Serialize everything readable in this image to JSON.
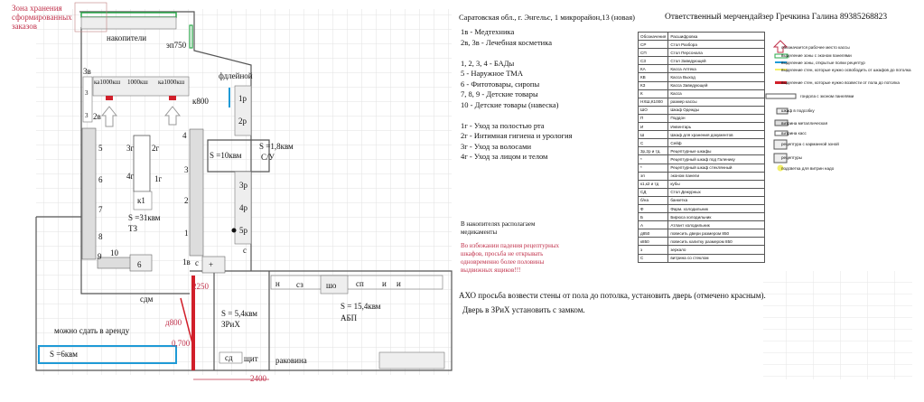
{
  "header": {
    "address": "Саратовская обл., г. Энгельс, 1 микрорайон,13 (новая)",
    "responsible": "Ответственный мерчендайзер Гречкина Галина 89385268823"
  },
  "zones": [
    "1в - Медтехника",
    "2в, 3в - Лечебная косметика",
    "",
    "1, 2, 3, 4 - БАДы",
    "5 - Наружное ТМА",
    "6 - Фитотовары, сиропы",
    "7, 8, 9 - Детские товары",
    "10 - Детские товары (навеска)",
    "",
    "1г - Уход за полостью рта",
    "2г - Интимная гигиена и урология",
    "3г - Уход за волосами",
    "4г - Уход за лицом и телом"
  ],
  "notes": {
    "storage": "В накопителях располагаем медикаменты",
    "warning": "Во избежании падения рецептурных шкафов, просьба не открывать одновременно более половины выдвижных ящиков!!!",
    "walls": "АХО просьба возвести стены от пола до потолка, установить дверь (отмечено красным).",
    "door": "Дверь в ЗРиХ установить с замком."
  },
  "plan": {
    "storage_zone": "Зона хранения сформированных заказов",
    "nakopiteli": "накопители",
    "ep750": "эп750",
    "v3": "3в",
    "ka1": "ка1000кш",
    "k1000": "1000кш",
    "ka2": "ка1000кш",
    "door_label": "фдлейной",
    "k800": "к800",
    "r1": "1р",
    "r2": "2р",
    "v2": "2в",
    "c3a": "3",
    "c3b": "3",
    "n5": "5",
    "n6": "6",
    "n7": "7",
    "n8": "8",
    "n9": "9",
    "n10": "10",
    "g3": "3г",
    "g2": "2г",
    "g4": "4г",
    "g1": "1г",
    "k1": "к1",
    "area_tz": "S =31квм",
    "tz": "ТЗ",
    "n4b": "4",
    "n3b": "3",
    "n2b": "2",
    "n1b": "1",
    "area_10": "S =10квм",
    "area_su": "S =1,8квм",
    "su": "С/У",
    "r3": "3р",
    "r4": "4р",
    "r5": "5р",
    "c_small": "с",
    "fridge6": "6",
    "v1": "1в",
    "c2": "с",
    "plus": "+",
    "sdm": "сдм",
    "d2250": "2250",
    "n_a": "н",
    "sz": "сз",
    "sho": "шо",
    "sp": "сп",
    "i1": "и",
    "i2": "и",
    "area_zrih": "S = 5,4квм",
    "zrih": "ЗРиХ",
    "area_abp": "S = 15,4квм",
    "abp": "АБП",
    "d800": "д800",
    "d0700": "0,700",
    "rent": "можно сдать в аренду",
    "area_6": "S =6квм",
    "sd": "сд",
    "shit": "щит",
    "sink": "раковина",
    "d2400": "2400"
  },
  "legend_table": [
    [
      "Обозначения",
      "Расшифровка"
    ],
    [
      "СР",
      "Стол Разбора"
    ],
    [
      "СП",
      "Стол Персонала"
    ],
    [
      "СЗ",
      "Стол Заведующей"
    ],
    [
      "КА",
      "Касса Аптека"
    ],
    [
      "КВ",
      "Касса Выход"
    ],
    [
      "КЗ",
      "Касса Заведующей"
    ],
    [
      "К",
      "Касса"
    ],
    [
      "НХШ,К1000",
      "размер кассы"
    ],
    [
      "ШО",
      "Шкаф Одежды"
    ],
    [
      "П",
      "Поддон"
    ],
    [
      "И",
      "Инвентарь"
    ],
    [
      "Ш",
      "Шкаф для хранения документов"
    ],
    [
      "С",
      "Сейф"
    ],
    [
      "3р,2р и тд.",
      "Рецептурные шкафы"
    ],
    [
      "*",
      "Рецептурный шкаф под Галенику"
    ],
    [
      "*",
      "Рецептурный шкаф стеклянный"
    ],
    [
      "эп",
      "эконом панели"
    ],
    [
      "к1,к2 и тд",
      "кубы"
    ],
    [
      "СД",
      "Стол Дежурных"
    ],
    [
      "б/на",
      "банкетка"
    ],
    [
      "Ф",
      "Фарм. холодильник"
    ],
    [
      "Б",
      "Бирюса холодильник"
    ],
    [
      "А",
      "Атлант холодильник"
    ],
    [
      "д850",
      "повесить двери размером 850"
    ],
    [
      "к850",
      "повесить калитку размером 850"
    ],
    [
      "з",
      "зеркало"
    ],
    [
      "С",
      "витрина со стеклом"
    ]
  ],
  "legend_symbols": [
    "обозначается рабочее место кассы",
    "выделение зоны с эконом панелями",
    "выделение зоны, открытые полки рецептур",
    "выделение стен, которые нужно освободить от шкафов до потолка",
    "выделение стен, которые нужно возвести от пола до потолка",
    "гондола с эконом панелями",
    "шкаф в подсобку",
    "витрина металлическая",
    "витрина касс",
    "рецептура с карманной зоной",
    "рецептуры",
    "подсветка для витрин надо"
  ],
  "colors": {
    "green": "#2aa84a",
    "blue": "#1f9ad6",
    "red": "#d11f2a",
    "yellow": "#f3ef6a",
    "note_red": "#c0304a",
    "grid": "#e2e2e2"
  }
}
